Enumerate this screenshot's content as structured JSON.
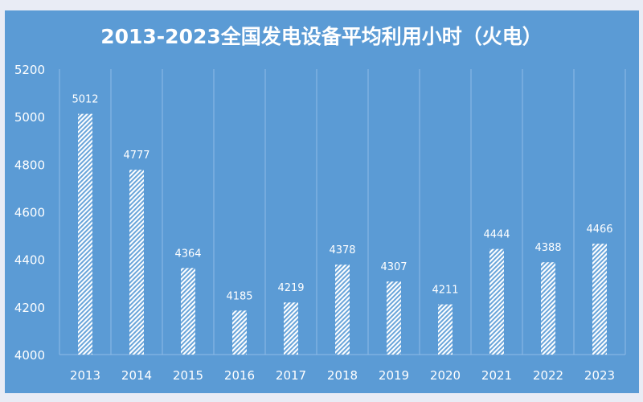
{
  "chart_data": {
    "type": "bar",
    "title": "2013-2023全国发电设备平均利用小时（火电）",
    "categories": [
      "2013",
      "2014",
      "2015",
      "2016",
      "2017",
      "2018",
      "2019",
      "2020",
      "2021",
      "2022",
      "2023"
    ],
    "values": [
      5012,
      4777,
      4364,
      4185,
      4219,
      4378,
      4307,
      4211,
      4444,
      4388,
      4466
    ],
    "ylim": [
      4000,
      5200
    ],
    "yticks": [
      4000,
      4200,
      4400,
      4600,
      4800,
      5000,
      5200
    ],
    "xlabel": "",
    "ylabel": "",
    "grid": "vertical category separators",
    "legend": "none",
    "colors": {
      "background": "#5b9bd5",
      "bar": "#ffffff",
      "text": "#ffffff",
      "grid": "#8fbbe6"
    },
    "bar_fill": "white diagonal hatch"
  }
}
